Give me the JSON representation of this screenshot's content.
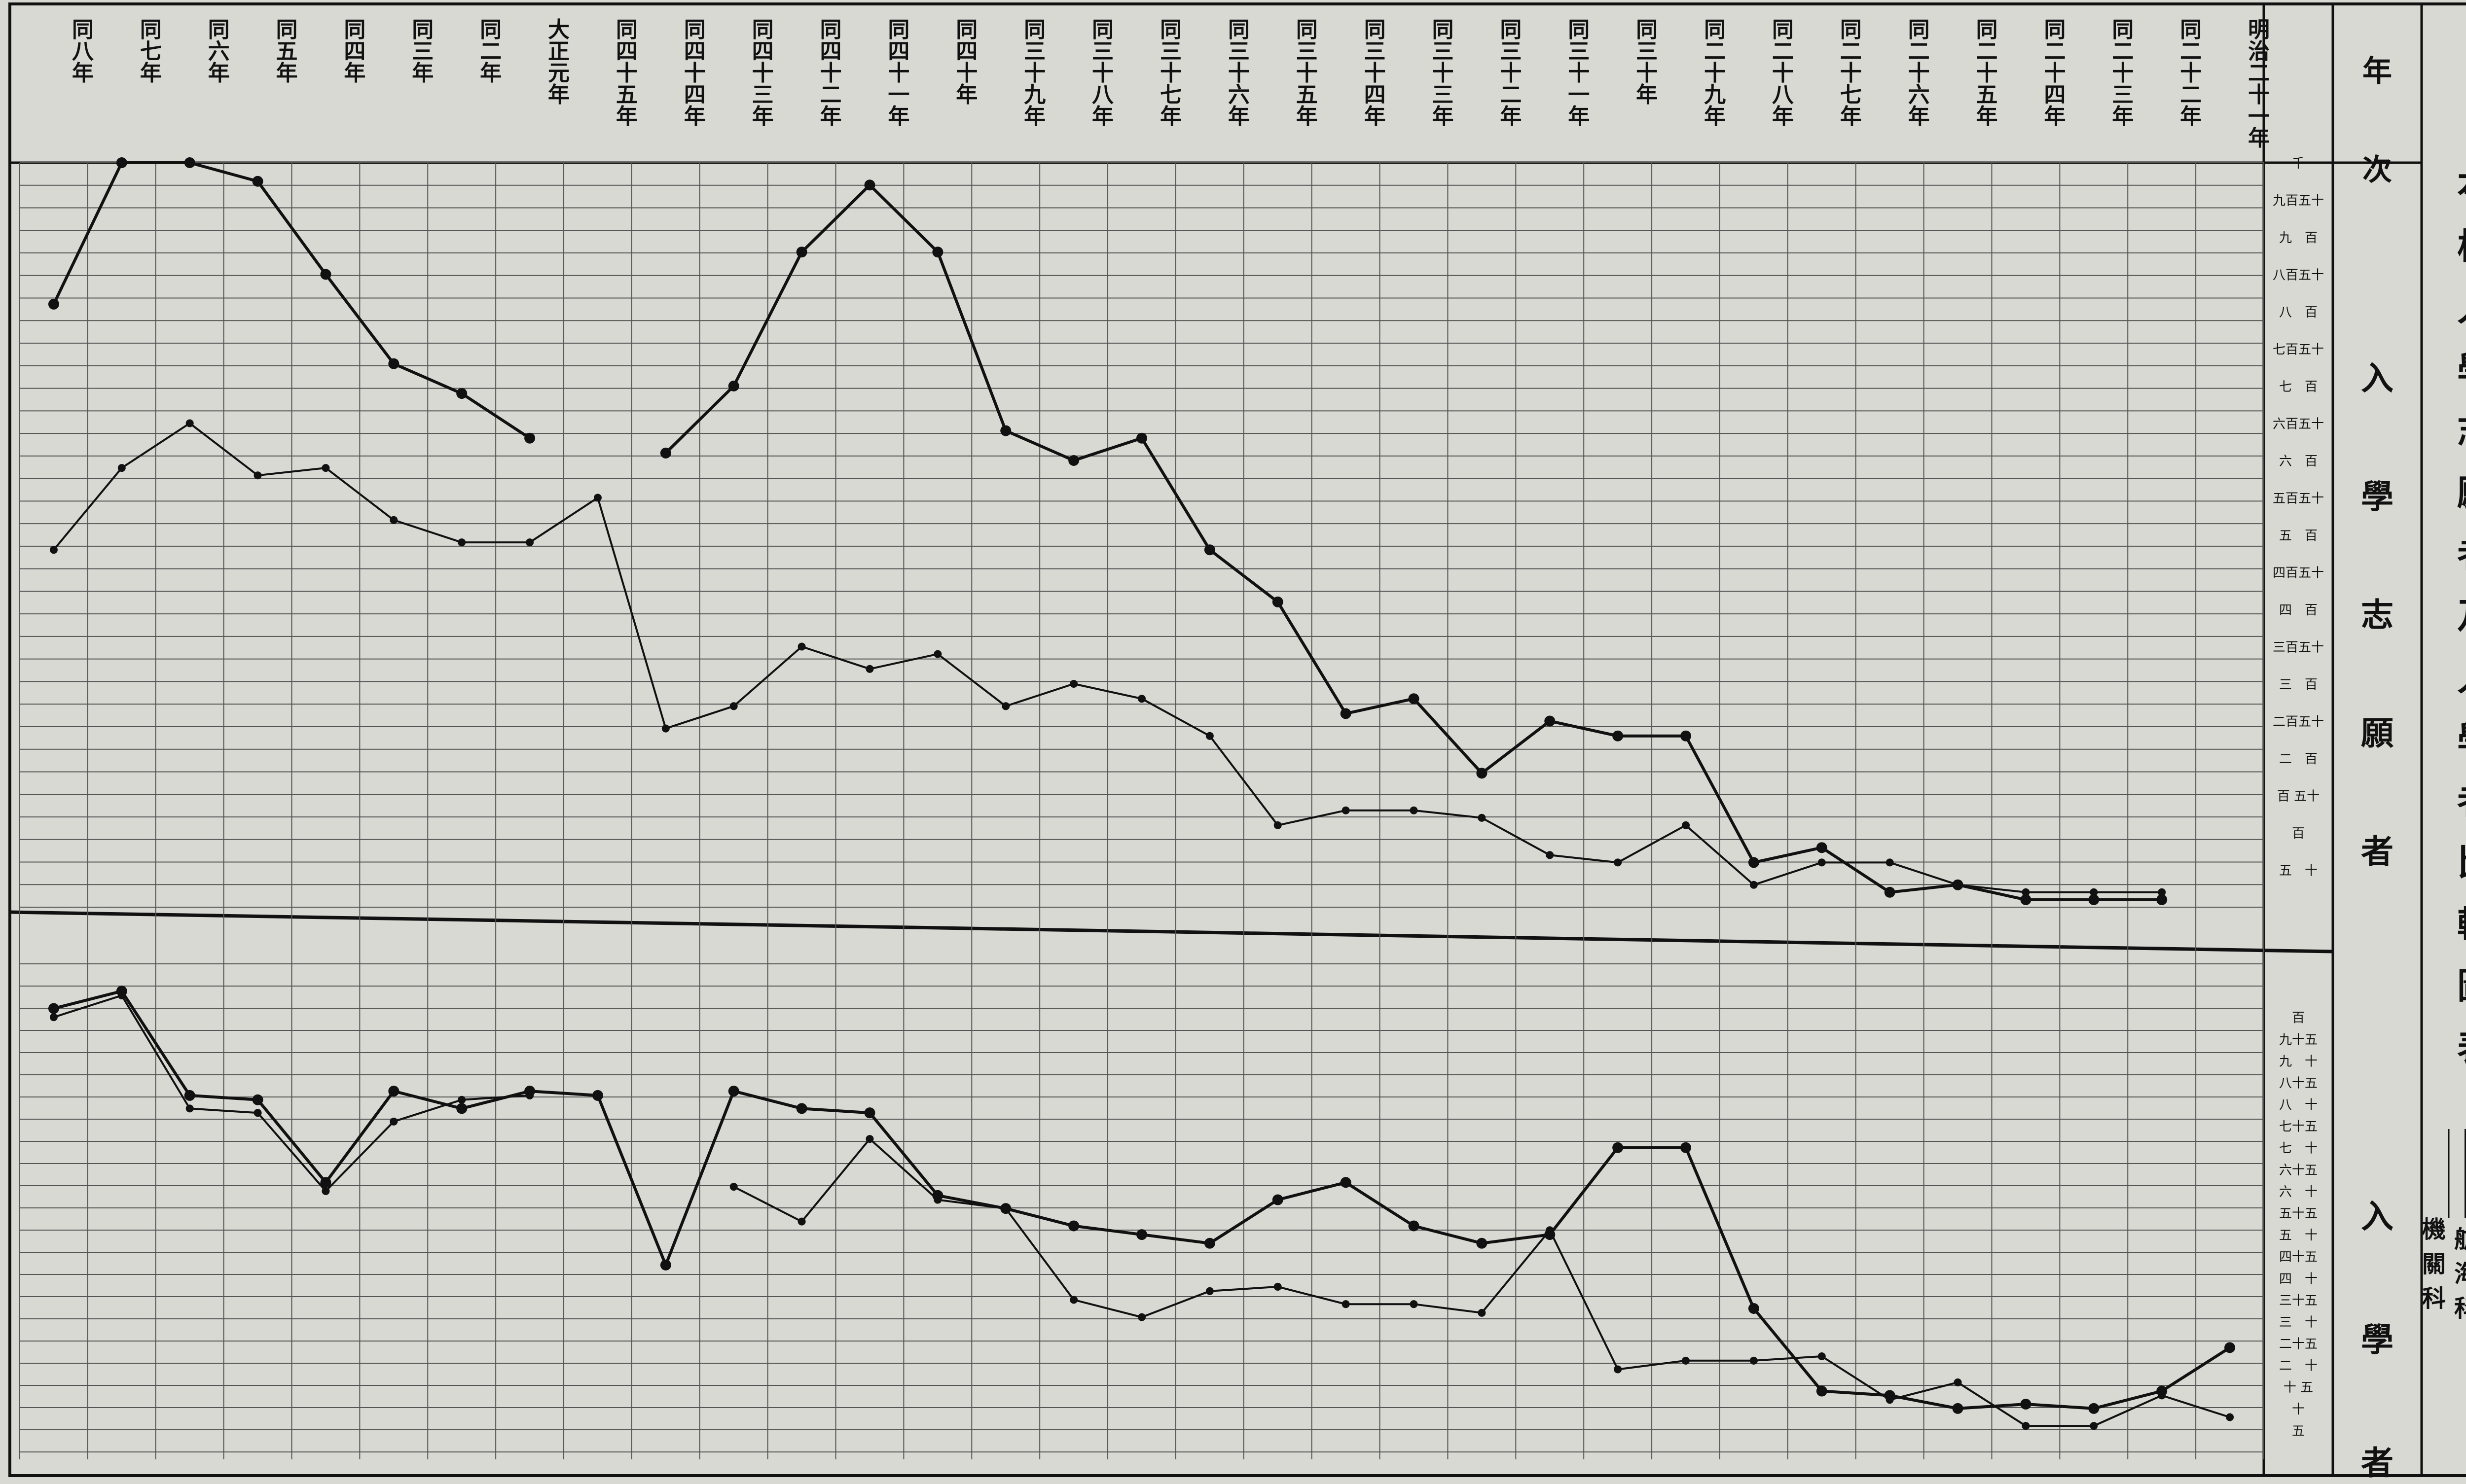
{
  "title": "本校入學志願者及入學者比較圖表",
  "legend": {
    "navigation": "航海科",
    "engineering": "機關科"
  },
  "header_label": "年次",
  "panel_labels": {
    "applicants": "入學志願者",
    "admitted": "入學者"
  },
  "colors": {
    "paper": "#d9d9d4",
    "ink": "#111111",
    "grid": "#555555"
  },
  "chart_data": [
    {
      "type": "line",
      "title": "入學志願者",
      "categories": [
        "同八年",
        "同七年",
        "同六年",
        "同五年",
        "同四年",
        "同三年",
        "同二年",
        "大正元年",
        "同四十五年",
        "同四十四年",
        "同四十三年",
        "同四十二年",
        "同四十一年",
        "同四十年",
        "同三十九年",
        "同三十八年",
        "同三十七年",
        "同三十六年",
        "同三十五年",
        "同三十四年",
        "同三十三年",
        "同三十二年",
        "同三十一年",
        "同三十年",
        "同二十九年",
        "同二十八年",
        "同二十七年",
        "同二十六年",
        "同二十五年",
        "同二十四年",
        "同二十三年",
        "同二十二年",
        "明治二十一年"
      ],
      "ylim": [
        0,
        1000
      ],
      "y_tick_labels": [
        "五　十",
        "百",
        "百 五十",
        "二　百",
        "二百五十",
        "三　百",
        "三百五十",
        "四　百",
        "四百五十",
        "五　百",
        "五百五十",
        "六　百",
        "六百五十",
        "七　百",
        "七百五十",
        "八　百",
        "八百五十",
        "九　百",
        "九百五十",
        "千"
      ],
      "series": [
        {
          "name": "航海科",
          "markers": true,
          "values": [
            810,
            1000,
            1000,
            975,
            850,
            730,
            690,
            630,
            null,
            610,
            700,
            880,
            970,
            880,
            640,
            600,
            630,
            480,
            410,
            260,
            280,
            180,
            250,
            230,
            230,
            60,
            80,
            20,
            30,
            10,
            10,
            10,
            null
          ]
        },
        {
          "name": "機關科",
          "markers": false,
          "values": [
            480,
            590,
            650,
            580,
            590,
            520,
            490,
            490,
            550,
            240,
            270,
            350,
            320,
            340,
            270,
            300,
            280,
            230,
            110,
            130,
            130,
            120,
            70,
            60,
            110,
            30,
            60,
            60,
            30,
            20,
            20,
            20,
            null
          ]
        }
      ]
    },
    {
      "type": "line",
      "title": "入學者",
      "categories": [
        "同八年",
        "同七年",
        "同六年",
        "同五年",
        "同四年",
        "同三年",
        "同二年",
        "大正元年",
        "同四十五年",
        "同四十四年",
        "同四十三年",
        "同四十二年",
        "同四十一年",
        "同四十年",
        "同三十九年",
        "同三十八年",
        "同三十七年",
        "同三十六年",
        "同三十五年",
        "同三十四年",
        "同三十三年",
        "同三十二年",
        "同三十一年",
        "同三十年",
        "同二十九年",
        "同二十八年",
        "同二十七年",
        "同二十六年",
        "同二十五年",
        "同二十四年",
        "同二十三年",
        "同二十二年",
        "明治二十一年"
      ],
      "ylim": [
        0,
        100
      ],
      "y_tick_labels": [
        "五",
        "十",
        "十 五",
        "二　十",
        "二十五",
        "三　十",
        "三十五",
        "四　十",
        "四十五",
        "五　十",
        "五十五",
        "六　十",
        "六十五",
        "七　十",
        "七十五",
        "八　十",
        "八十五",
        "九　十",
        "九十五",
        "百"
      ],
      "series": [
        {
          "name": "航海科",
          "markers": true,
          "values": [
            102,
            106,
            82,
            81,
            62,
            83,
            79,
            83,
            82,
            43,
            83,
            79,
            78,
            59,
            56,
            52,
            50,
            48,
            58,
            62,
            52,
            48,
            50,
            70,
            70,
            33,
            14,
            13,
            10,
            11,
            10,
            14,
            24
          ]
        },
        {
          "name": "機關科",
          "markers": false,
          "values": [
            100,
            105,
            79,
            78,
            60,
            76,
            81,
            82,
            null,
            null,
            61,
            53,
            72,
            58,
            56,
            35,
            31,
            37,
            38,
            34,
            34,
            32,
            51,
            19,
            21,
            21,
            22,
            12,
            16,
            6,
            6,
            13,
            8
          ]
        }
      ]
    }
  ]
}
